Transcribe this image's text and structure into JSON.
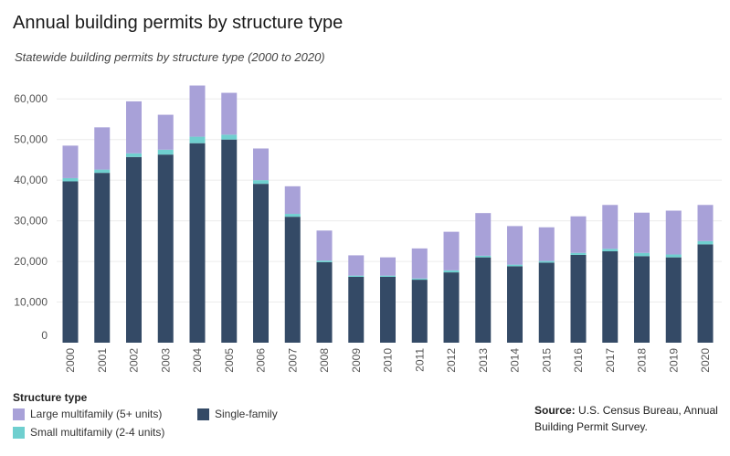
{
  "header": {
    "title": "Annual building permits by structure type",
    "subtitle": "Statewide building permits by structure type (2000 to 2020)"
  },
  "legend": {
    "title": "Structure type",
    "items": [
      {
        "label": "Large multifamily (5+ units)",
        "color": "#a8a1d8"
      },
      {
        "label": "Small multifamily (2-4 units)",
        "color": "#6fcfcf"
      },
      {
        "label": "Single-family",
        "color": "#344a66"
      }
    ]
  },
  "source": {
    "label": "Source:",
    "text": "U.S. Census Bureau, Annual Building Permit Survey."
  },
  "chart_data": {
    "type": "bar",
    "stacked": true,
    "title": "Annual building permits by structure type",
    "subtitle": "Statewide building permits by structure type (2000 to 2020)",
    "xlabel": "",
    "ylabel": "",
    "ylim": [
      0,
      65000
    ],
    "yticks": [
      0,
      10000,
      20000,
      30000,
      40000,
      50000,
      60000
    ],
    "ytick_labels": [
      "0",
      "10,000",
      "20,000",
      "30,000",
      "40,000",
      "50,000",
      "60,000"
    ],
    "grid": true,
    "categories": [
      "2000",
      "2001",
      "2002",
      "2003",
      "2004",
      "2005",
      "2006",
      "2007",
      "2008",
      "2009",
      "2010",
      "2011",
      "2012",
      "2013",
      "2014",
      "2015",
      "2016",
      "2017",
      "2018",
      "2019",
      "2020"
    ],
    "series": [
      {
        "name": "Single-family",
        "color": "#344a66",
        "values": [
          39700,
          41800,
          45700,
          46300,
          49100,
          50000,
          39100,
          31000,
          19800,
          16200,
          16200,
          15500,
          17300,
          21000,
          18800,
          19700,
          21600,
          22500,
          21300,
          21000,
          24200
        ]
      },
      {
        "name": "Small multifamily (2-4 units)",
        "color": "#6fcfcf",
        "values": [
          800,
          800,
          900,
          1200,
          1600,
          1200,
          900,
          700,
          400,
          300,
          300,
          300,
          500,
          400,
          400,
          400,
          500,
          600,
          800,
          700,
          800
        ]
      },
      {
        "name": "Large multifamily (5+ units)",
        "color": "#a8a1d8",
        "values": [
          8000,
          10400,
          12800,
          8600,
          12600,
          10300,
          7800,
          6800,
          7400,
          5000,
          4500,
          7400,
          9500,
          10500,
          9500,
          8300,
          9000,
          10800,
          9900,
          10800,
          8900
        ]
      }
    ],
    "legend_position": "bottom-left"
  }
}
